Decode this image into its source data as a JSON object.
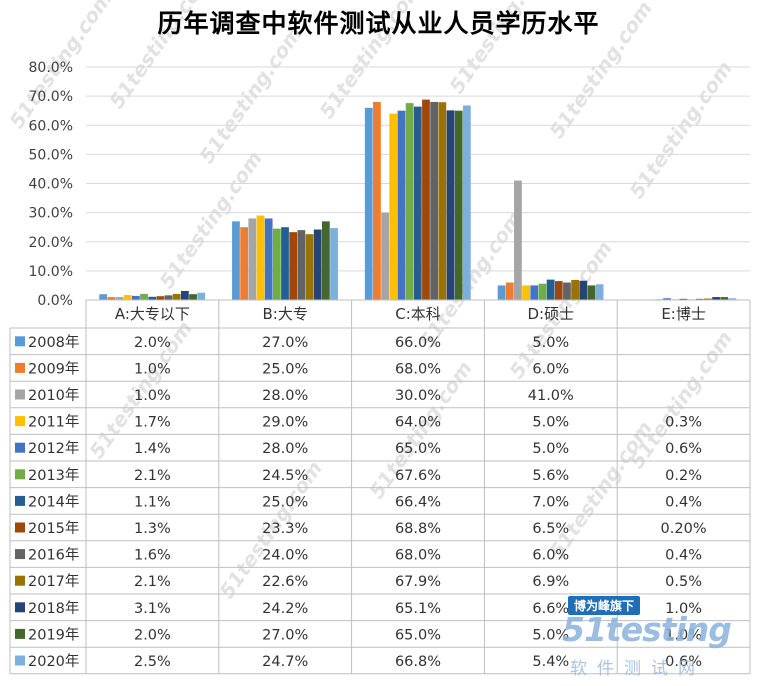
{
  "chart_data": {
    "type": "bar",
    "title": "历年调查中软件测试从业人员学历水平",
    "categories": [
      "A:大专以下",
      "B:大专",
      "C:本科",
      "D:硕士",
      "E:博士"
    ],
    "ylim": [
      0,
      80
    ],
    "yticks": [
      "0.0%",
      "10.0%",
      "20.0%",
      "30.0%",
      "40.0%",
      "50.0%",
      "60.0%",
      "70.0%",
      "80.0%"
    ],
    "grid": true,
    "legend": "data-table",
    "series": [
      {
        "name": "2008年",
        "color": "#5b9bd5",
        "values": [
          2.0,
          27.0,
          66.0,
          5.0,
          null
        ],
        "labels": [
          "2.0%",
          "27.0%",
          "66.0%",
          "5.0%",
          ""
        ]
      },
      {
        "name": "2009年",
        "color": "#ed7d31",
        "values": [
          1.0,
          25.0,
          68.0,
          6.0,
          null
        ],
        "labels": [
          "1.0%",
          "25.0%",
          "68.0%",
          "6.0%",
          ""
        ]
      },
      {
        "name": "2010年",
        "color": "#a5a5a5",
        "values": [
          1.0,
          28.0,
          30.0,
          41.0,
          null
        ],
        "labels": [
          "1.0%",
          "28.0%",
          "30.0%",
          "41.0%",
          ""
        ]
      },
      {
        "name": "2011年",
        "color": "#ffc000",
        "values": [
          1.7,
          29.0,
          64.0,
          5.0,
          0.3
        ],
        "labels": [
          "1.7%",
          "29.0%",
          "64.0%",
          "5.0%",
          "0.3%"
        ]
      },
      {
        "name": "2012年",
        "color": "#4472c4",
        "values": [
          1.4,
          28.0,
          65.0,
          5.0,
          0.6
        ],
        "labels": [
          "1.4%",
          "28.0%",
          "65.0%",
          "5.0%",
          "0.6%"
        ]
      },
      {
        "name": "2013年",
        "color": "#70ad47",
        "values": [
          2.1,
          24.5,
          67.6,
          5.6,
          0.2
        ],
        "labels": [
          "2.1%",
          "24.5%",
          "67.6%",
          "5.6%",
          "0.2%"
        ]
      },
      {
        "name": "2014年",
        "color": "#255e91",
        "values": [
          1.1,
          25.0,
          66.4,
          7.0,
          0.4
        ],
        "labels": [
          "1.1%",
          "25.0%",
          "66.4%",
          "7.0%",
          "0.4%"
        ]
      },
      {
        "name": "2015年",
        "color": "#9e480e",
        "values": [
          1.3,
          23.3,
          68.8,
          6.5,
          0.2
        ],
        "labels": [
          "1.3%",
          "23.3%",
          "68.8%",
          "6.5%",
          "0.20%"
        ]
      },
      {
        "name": "2016年",
        "color": "#636363",
        "values": [
          1.6,
          24.0,
          68.0,
          6.0,
          0.4
        ],
        "labels": [
          "1.6%",
          "24.0%",
          "68.0%",
          "6.0%",
          "0.4%"
        ]
      },
      {
        "name": "2017年",
        "color": "#997300",
        "values": [
          2.1,
          22.6,
          67.9,
          6.9,
          0.5
        ],
        "labels": [
          "2.1%",
          "22.6%",
          "67.9%",
          "6.9%",
          "0.5%"
        ]
      },
      {
        "name": "2018年",
        "color": "#264478",
        "values": [
          3.1,
          24.2,
          65.1,
          6.6,
          1.0
        ],
        "labels": [
          "3.1%",
          "24.2%",
          "65.1%",
          "6.6%",
          "1.0%"
        ]
      },
      {
        "name": "2019年",
        "color": "#43682b",
        "values": [
          2.0,
          27.0,
          65.0,
          5.0,
          1.0
        ],
        "labels": [
          "2.0%",
          "27.0%",
          "65.0%",
          "5.0%",
          "1.0%"
        ]
      },
      {
        "name": "2020年",
        "color": "#7cafdd",
        "values": [
          2.5,
          24.7,
          66.8,
          5.4,
          0.6
        ],
        "labels": [
          "2.5%",
          "24.7%",
          "66.8%",
          "5.4%",
          "0.6%"
        ]
      }
    ]
  },
  "watermark": {
    "text": "51testing.com",
    "logo_badge": "博为峰旗下",
    "logo_main": "51testing",
    "logo_sub": "软件测试网"
  }
}
